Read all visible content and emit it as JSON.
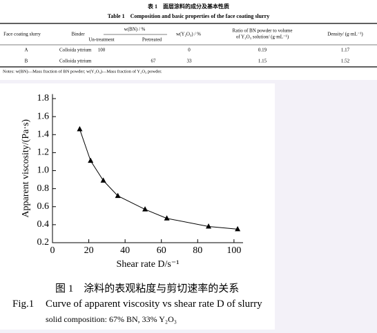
{
  "table": {
    "title_cn": "表 1　面层涂料的成分及基本性质",
    "title": "Table 1　Composition and basic properties of the face coating slurry",
    "header": [
      "Face coating slurry",
      "Binder",
      "w(BN) / %",
      "w(Y₂O₃) / %",
      [
        "Ratio of BN powder to volume",
        "of Y₂O₃ solution/ (g·mL⁻¹)"
      ],
      "Density/ (g·mL⁻¹)"
    ],
    "subheader": [
      "Un-treatment",
      "Pretreated"
    ],
    "rows": [
      [
        "A",
        "Colloida yttrium",
        100,
        null,
        0,
        0.19,
        1.17
      ],
      [
        "B",
        "Colloida yttrium",
        null,
        67,
        33,
        1.15,
        1.52
      ]
    ],
    "notes": "Notes: w(BN)—Mass fraction of BN powder; w(Y₂O₃)—Mass fraction of Y₂O₃ powder."
  },
  "chart_data": {
    "type": "line",
    "x": [
      15,
      21,
      28,
      36,
      51,
      63,
      86,
      102
    ],
    "values": [
      1.46,
      1.11,
      0.89,
      0.72,
      0.57,
      0.47,
      0.38,
      0.35
    ],
    "color": "#000000",
    "marker": "triangle",
    "xlabel": "Shear rate D/s⁻¹",
    "ylabel": "Apparent viscosity/(Pa·s)",
    "xlim": [
      0,
      105
    ],
    "ylim": [
      0.2,
      1.85
    ],
    "xticks": [
      0,
      20,
      40,
      60,
      80,
      100
    ],
    "yticks": [
      0.2,
      0.4,
      0.6,
      0.8,
      {
        "value": 1,
        "label": "1.0"
      },
      1.2,
      1.4,
      1.6,
      1.8
    ]
  },
  "caption": {
    "cn": "图 1　涂料的表观粘度与剪切速率的关系",
    "label": "Fig.1",
    "en": "Curve of apparent viscosity vs shear rate D of slurry",
    "note": "solid composition: 67% BN, 33% Y₂O₃"
  }
}
